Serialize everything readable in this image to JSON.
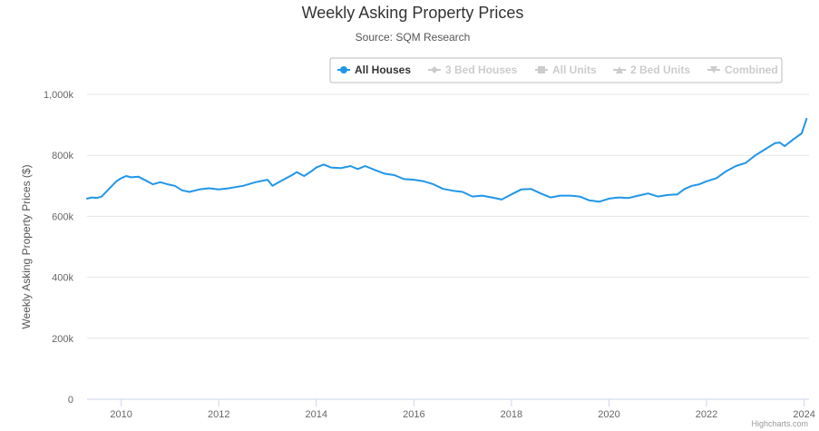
{
  "chart_data": {
    "type": "line",
    "title": "Weekly Asking Property Prices",
    "subtitle": "Source: SQM Research",
    "ylabel": "Weekly Asking Property Prices ($)",
    "xlabel": "",
    "ylim": [
      0,
      1000000
    ],
    "xlim": [
      2009.3,
      2024.1
    ],
    "y_ticks": [
      0,
      200000,
      400000,
      600000,
      800000,
      1000000
    ],
    "y_tick_labels": [
      "0",
      "200k",
      "400k",
      "600k",
      "800k",
      "1,000k"
    ],
    "x_ticks": [
      2010,
      2012,
      2014,
      2016,
      2018,
      2020,
      2022,
      2024
    ],
    "x_tick_labels": [
      "2010",
      "2012",
      "2014",
      "2016",
      "2018",
      "2020",
      "2022",
      "2024"
    ],
    "grid": true,
    "legend_position": "top-right",
    "credits": "Highcharts.com",
    "series": [
      {
        "name": "All Houses",
        "visible": true,
        "color": "#2196e8",
        "x": [
          2009.3,
          2009.4,
          2009.5,
          2009.6,
          2009.75,
          2009.9,
          2010.0,
          2010.1,
          2010.2,
          2010.35,
          2010.5,
          2010.65,
          2010.8,
          2010.95,
          2011.1,
          2011.25,
          2011.4,
          2011.6,
          2011.8,
          2012.0,
          2012.2,
          2012.5,
          2012.75,
          2013.0,
          2013.1,
          2013.3,
          2013.5,
          2013.6,
          2013.75,
          2013.9,
          2014.0,
          2014.15,
          2014.3,
          2014.5,
          2014.7,
          2014.85,
          2015.0,
          2015.2,
          2015.4,
          2015.6,
          2015.8,
          2016.0,
          2016.2,
          2016.4,
          2016.6,
          2016.8,
          2017.0,
          2017.2,
          2017.4,
          2017.6,
          2017.8,
          2018.0,
          2018.2,
          2018.4,
          2018.6,
          2018.8,
          2019.0,
          2019.2,
          2019.4,
          2019.6,
          2019.8,
          2020.0,
          2020.2,
          2020.4,
          2020.6,
          2020.8,
          2021.0,
          2021.2,
          2021.4,
          2021.55,
          2021.7,
          2021.85,
          2022.0,
          2022.2,
          2022.4,
          2022.6,
          2022.8,
          2023.0,
          2023.2,
          2023.4,
          2023.5,
          2023.6,
          2023.8,
          2023.95,
          2024.05
        ],
        "values": [
          658000,
          662000,
          660000,
          665000,
          690000,
          715000,
          725000,
          732000,
          728000,
          730000,
          718000,
          705000,
          712000,
          705000,
          700000,
          685000,
          680000,
          688000,
          692000,
          688000,
          692000,
          700000,
          712000,
          720000,
          700000,
          718000,
          735000,
          745000,
          732000,
          748000,
          760000,
          770000,
          760000,
          758000,
          765000,
          755000,
          765000,
          752000,
          740000,
          735000,
          722000,
          720000,
          715000,
          705000,
          690000,
          684000,
          680000,
          665000,
          668000,
          662000,
          655000,
          672000,
          688000,
          690000,
          675000,
          662000,
          668000,
          668000,
          665000,
          652000,
          648000,
          658000,
          662000,
          660000,
          668000,
          675000,
          665000,
          670000,
          672000,
          690000,
          700000,
          705000,
          715000,
          725000,
          748000,
          765000,
          775000,
          800000,
          820000,
          840000,
          842000,
          830000,
          855000,
          872000,
          920000
        ]
      },
      {
        "name": "3 Bed Houses",
        "visible": false,
        "color": "#cccccc"
      },
      {
        "name": "All Units",
        "visible": false,
        "color": "#cccccc"
      },
      {
        "name": "2 Bed Units",
        "visible": false,
        "color": "#cccccc"
      },
      {
        "name": "Combined",
        "visible": false,
        "color": "#cccccc"
      }
    ]
  }
}
